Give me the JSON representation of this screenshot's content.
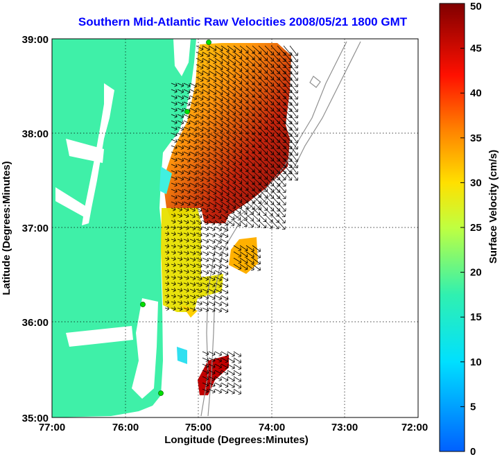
{
  "title": "Southern Mid-Atlantic Raw Velocities 2008/05/21 1800 GMT",
  "axes": {
    "xlabel": "Longitude (Degrees:Minutes)",
    "ylabel": "Latitude (Degrees:Minutes)",
    "x_ticks": [
      "77:00",
      "76:00",
      "75:00",
      "74:00",
      "73:00",
      "72:00"
    ],
    "y_ticks": [
      "39:00",
      "38:00",
      "37:00",
      "36:00",
      "35:00"
    ],
    "x_range": [
      -77,
      -72
    ],
    "y_range": [
      35,
      39
    ]
  },
  "colorbar": {
    "label": "Surface Velocity (cm/s)",
    "ticks": [
      "50",
      "45",
      "40",
      "35",
      "30",
      "25",
      "20",
      "15",
      "10",
      "5",
      "0"
    ],
    "range": [
      0,
      50
    ]
  },
  "colors": {
    "land": "#3ff0a8",
    "title": "#0000ff",
    "high_speed": "#800000",
    "low_speed": "#0080ff"
  }
}
